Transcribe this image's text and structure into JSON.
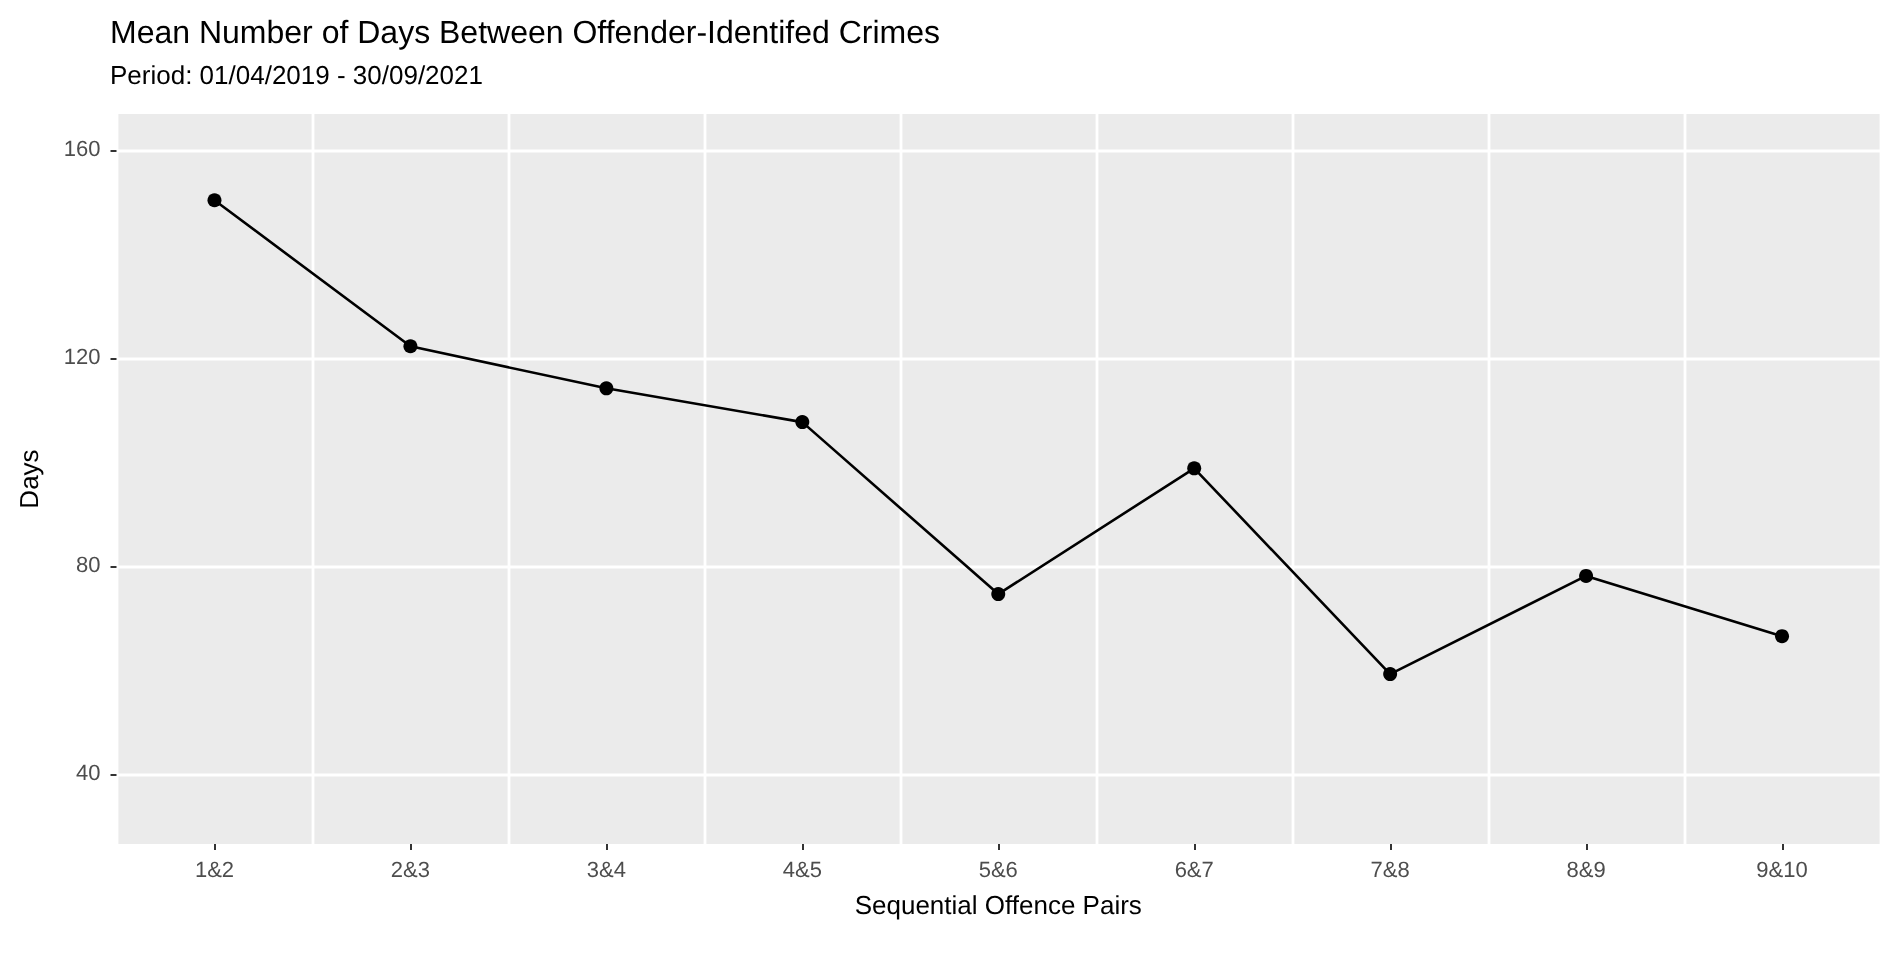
{
  "chart_data": {
    "type": "line",
    "title": "Mean Number of Days Between Offender-Identifed Crimes",
    "subtitle": "Period: 01/04/2019 - 30/09/2021",
    "xlabel": "Sequential Offence Pairs",
    "ylabel": "Days",
    "categories": [
      "1&2",
      "2&3",
      "3&4",
      "4&5",
      "5&6",
      "6&7",
      "7&8",
      "8&9",
      "9&10"
    ],
    "series": [
      {
        "color": "#000000",
        "values": [
          150.4,
          122.3,
          114.2,
          107.7,
          74.6,
          98.8,
          59.2,
          78.1,
          66.5
        ]
      }
    ],
    "ylim": [
      26.5,
      167
    ],
    "yticks": [
      40,
      80,
      120,
      160
    ],
    "grid": true,
    "marker": "circle",
    "line_style": "solid"
  }
}
